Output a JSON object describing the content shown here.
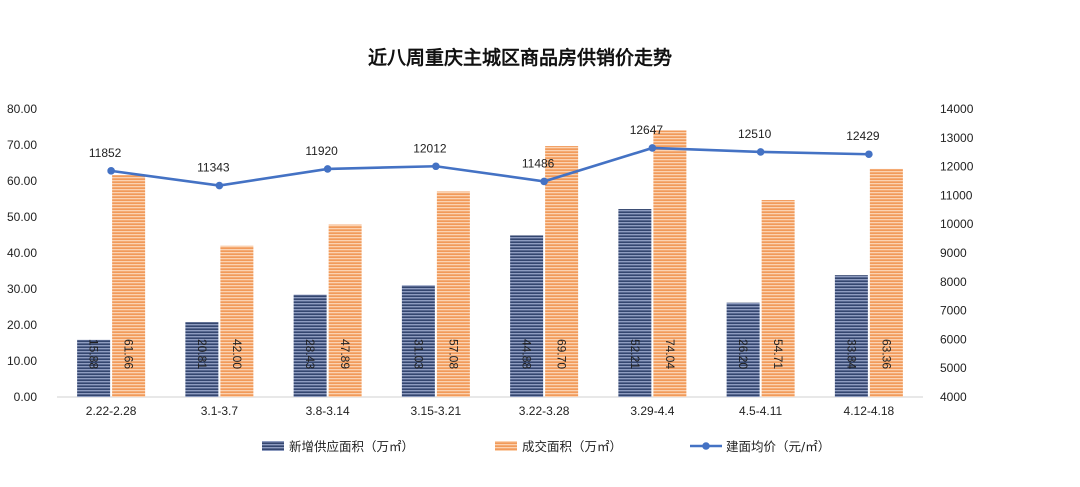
{
  "chart_data": {
    "type": "bar",
    "title": "近八周重庆主城区商品房供销价走势",
    "categories": [
      "2.22-2.28",
      "3.1-3.7",
      "3.8-3.14",
      "3.15-3.21",
      "3.22-3.28",
      "3.29-4.4",
      "4.5-4.11",
      "4.12-4.18"
    ],
    "left_axis": {
      "min": 0,
      "max": 80,
      "step": 10,
      "tick_labels": [
        "0.00",
        "10.00",
        "20.00",
        "30.00",
        "40.00",
        "50.00",
        "60.00",
        "70.00",
        "80.00"
      ]
    },
    "right_axis": {
      "min": 4000,
      "max": 14000,
      "step": 1000,
      "tick_labels": [
        "4000",
        "5000",
        "6000",
        "7000",
        "8000",
        "9000",
        "10000",
        "11000",
        "12000",
        "13000",
        "14000"
      ]
    },
    "series": [
      {
        "name": "新增供应面积（万㎡）",
        "kind": "bar",
        "axis": "left",
        "color": "#4a5d8c",
        "values": [
          15.88,
          20.81,
          28.43,
          31.03,
          44.88,
          52.21,
          26.2,
          33.84
        ],
        "labels": [
          "15.88",
          "20.81",
          "28.43",
          "31.03",
          "44.88",
          "52.21",
          "26.20",
          "33.84"
        ]
      },
      {
        "name": "成交面积（万㎡）",
        "kind": "bar",
        "axis": "left",
        "color": "#f4a267",
        "values": [
          61.66,
          42.0,
          47.89,
          57.08,
          69.7,
          74.04,
          54.71,
          63.36
        ],
        "labels": [
          "61.66",
          "42.00",
          "47.89",
          "57.08",
          "69.70",
          "74.04",
          "54.71",
          "63.36"
        ]
      },
      {
        "name": "建面均价（元/㎡）",
        "kind": "line",
        "axis": "right",
        "color": "#4472c4",
        "values": [
          11852,
          11343,
          11920,
          12012,
          11486,
          12647,
          12510,
          12429
        ],
        "labels": [
          "11852",
          "11343",
          "11920",
          "12012",
          "11486",
          "12647",
          "12510",
          "12429"
        ]
      }
    ],
    "legend_position": "bottom",
    "grid": false
  }
}
